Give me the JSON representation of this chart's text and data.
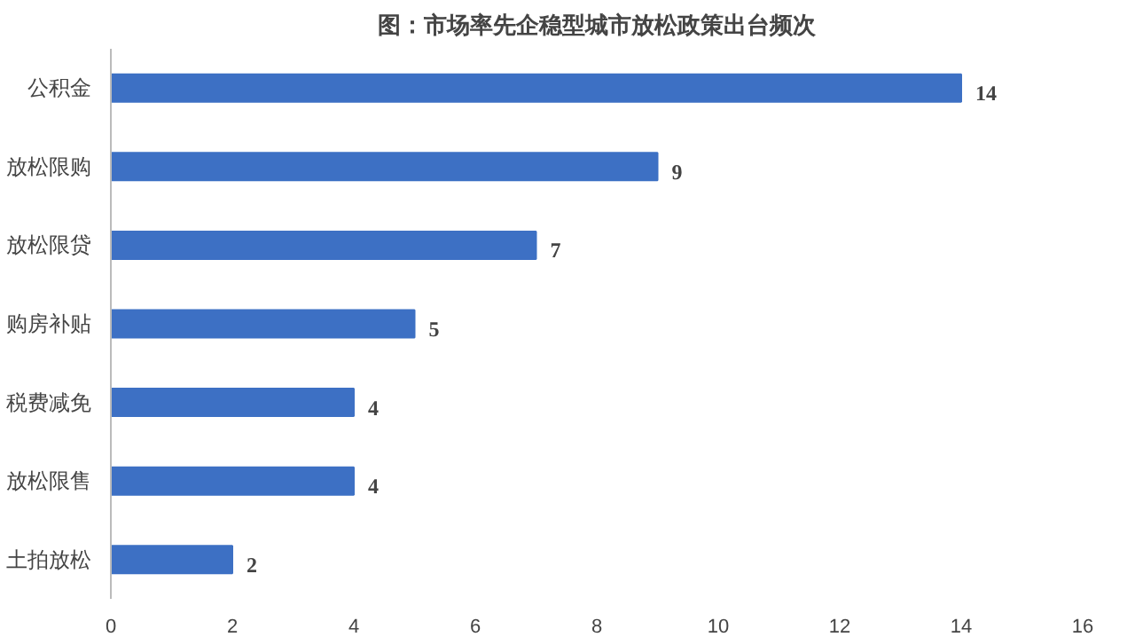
{
  "chart_data": {
    "type": "bar",
    "orientation": "horizontal",
    "title": "图：市场率先企稳型城市放松政策出台频次",
    "categories": [
      "公积金",
      "放松限购",
      "放松限贷",
      "购房补贴",
      "税费减免",
      "放松限售",
      "土拍放松"
    ],
    "values": [
      14,
      9,
      7,
      5,
      4,
      4,
      2
    ],
    "color": "#3d70c4",
    "xlim": [
      0,
      16
    ],
    "xticks": [
      0,
      2,
      4,
      6,
      8,
      10,
      12,
      14,
      16
    ],
    "grid": false,
    "data_labels": true
  }
}
